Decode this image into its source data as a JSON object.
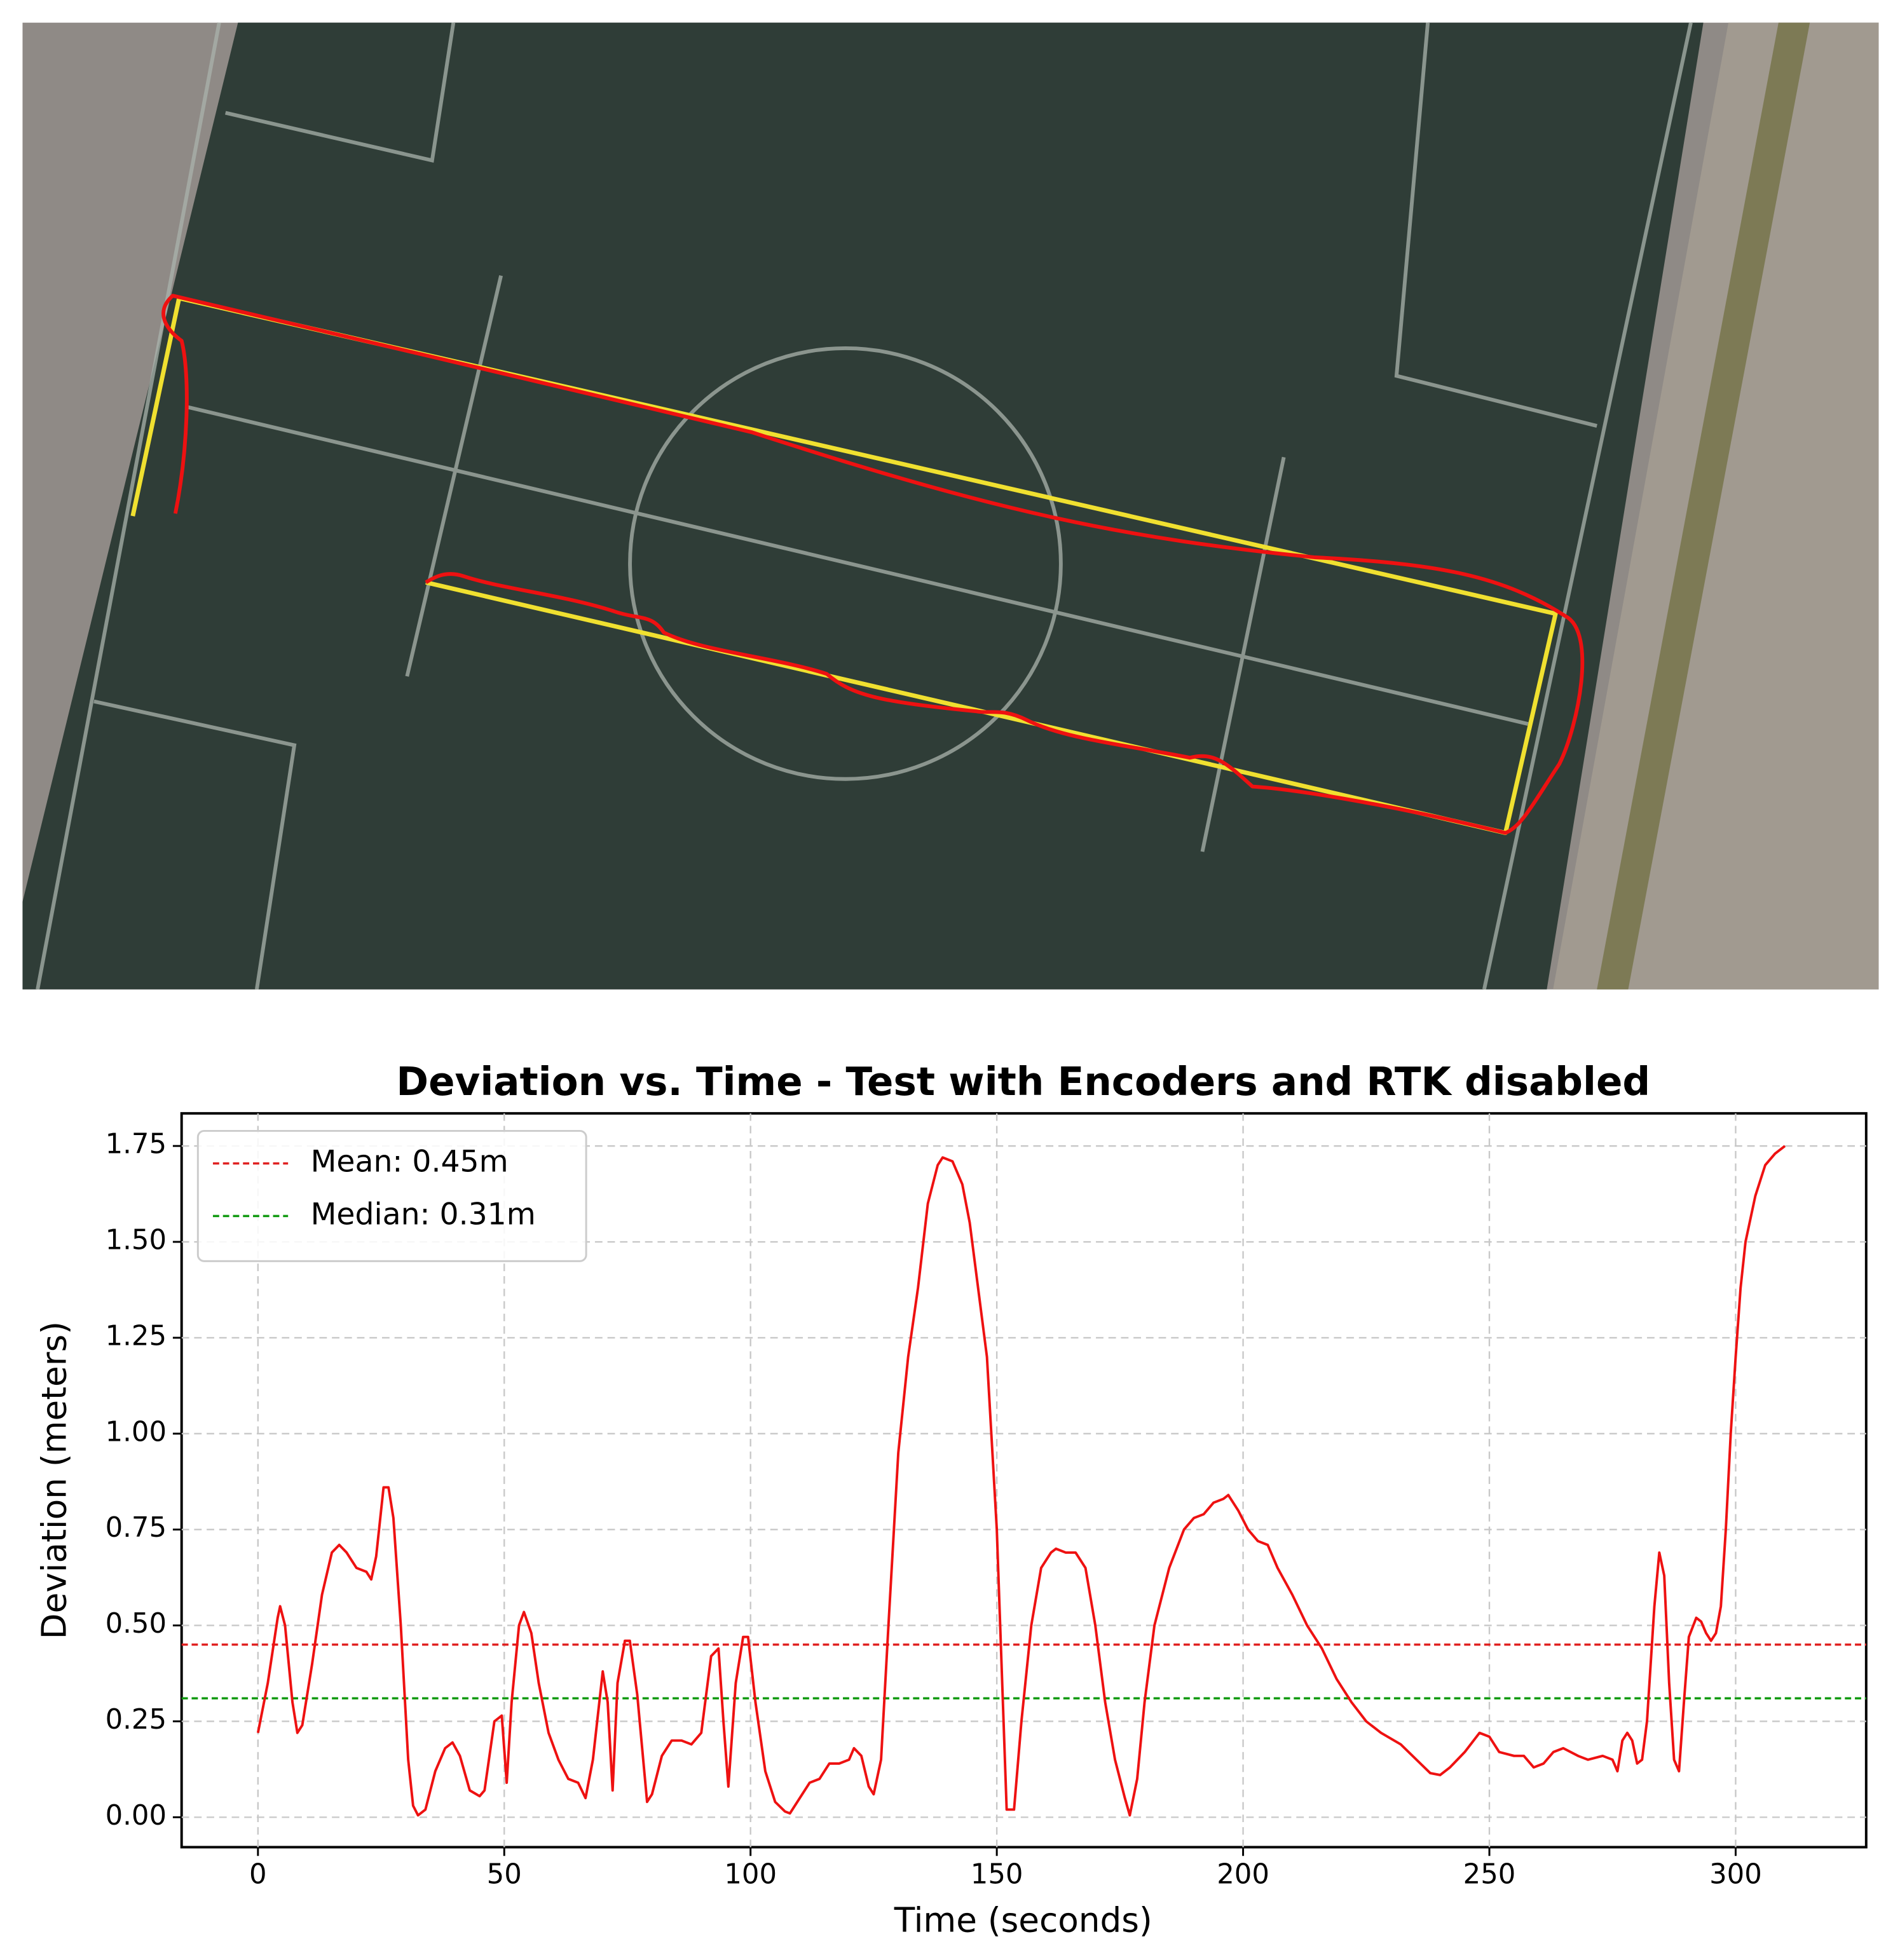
{
  "chart_data": {
    "type": "line",
    "title": "Deviation vs. Time - Test with Encoders and RTK disabled",
    "xlabel": "Time (seconds)",
    "ylabel": "Deviation (meters)",
    "xlim": [
      -15.5,
      326.5
    ],
    "ylim": [
      -0.078,
      1.835
    ],
    "xticks": [
      0,
      50,
      100,
      150,
      200,
      250,
      300
    ],
    "yticks": [
      {
        "value": 0,
        "label": "0.00"
      },
      {
        "value": 0.25,
        "label": "0.25"
      },
      {
        "value": 0.5,
        "label": "0.50"
      },
      {
        "value": 0.75,
        "label": "0.75"
      },
      {
        "value": 1,
        "label": "1.00"
      },
      {
        "value": 1.25,
        "label": "1.25"
      },
      {
        "value": 1.5,
        "label": "1.50"
      },
      {
        "value": 1.75,
        "label": "1.75"
      }
    ],
    "grid": true,
    "legend": "upper left",
    "hlines": [
      {
        "name": "Mean: 0.45m",
        "value": 0.45,
        "color": "#e02020"
      },
      {
        "name": "Median: 0.31m",
        "value": 0.31,
        "color": "#109a10"
      }
    ],
    "series": [
      {
        "color": "#ee1111",
        "x": [
          0,
          2,
          4,
          4.5,
          5.5,
          7,
          8,
          9,
          11,
          13,
          15,
          16.5,
          18,
          20,
          22,
          23,
          24,
          25.5,
          26.5,
          27.5,
          29,
          30.5,
          31.5,
          32.5,
          34,
          36,
          38,
          39.5,
          41,
          43,
          45,
          46,
          48,
          49.5,
          50.5,
          51.5,
          53,
          54,
          55.5,
          57,
          59,
          61,
          63,
          65,
          66.5,
          68,
          70,
          71,
          72,
          73,
          74.5,
          75.5,
          77,
          79,
          80,
          82,
          84,
          86,
          88,
          90,
          92,
          93.5,
          94.5,
          95.5,
          97,
          98.5,
          99.5,
          101,
          103,
          105,
          107,
          108,
          110,
          112,
          114,
          116,
          118,
          120,
          121,
          122.5,
          124,
          125,
          126.5,
          128,
          130,
          132,
          134,
          136,
          138,
          139,
          141,
          143,
          144.5,
          146,
          148,
          150,
          152,
          153.5,
          155,
          157,
          159,
          161,
          162,
          164,
          166,
          168,
          170,
          172,
          174,
          176,
          177,
          178.5,
          180,
          182,
          185,
          188,
          190,
          192,
          194,
          196,
          197,
          199,
          201,
          203,
          205,
          207,
          210,
          213,
          216,
          219,
          222,
          225,
          228,
          232,
          236,
          238,
          240,
          242,
          245,
          248,
          250,
          252,
          255,
          257,
          259,
          261,
          263,
          265,
          268,
          270,
          273,
          275,
          276,
          277,
          278,
          279,
          280,
          281,
          282,
          283.5,
          284.5,
          285.5,
          286.5,
          287.5,
          288.5,
          289.5,
          290.5,
          292,
          293,
          294,
          295,
          296,
          297,
          298,
          299,
          300,
          301,
          302,
          304,
          306,
          308,
          310
        ],
        "values": [
          0.22,
          0.35,
          0.52,
          0.55,
          0.5,
          0.3,
          0.22,
          0.24,
          0.4,
          0.58,
          0.69,
          0.71,
          0.69,
          0.65,
          0.64,
          0.62,
          0.68,
          0.86,
          0.86,
          0.78,
          0.5,
          0.15,
          0.03,
          0.005,
          0.02,
          0.12,
          0.18,
          0.195,
          0.16,
          0.07,
          0.055,
          0.07,
          0.25,
          0.265,
          0.09,
          0.3,
          0.5,
          0.535,
          0.48,
          0.35,
          0.22,
          0.15,
          0.1,
          0.09,
          0.05,
          0.15,
          0.38,
          0.3,
          0.07,
          0.35,
          0.46,
          0.46,
          0.32,
          0.04,
          0.06,
          0.16,
          0.2,
          0.2,
          0.19,
          0.22,
          0.42,
          0.44,
          0.25,
          0.08,
          0.35,
          0.47,
          0.47,
          0.3,
          0.12,
          0.04,
          0.015,
          0.01,
          0.05,
          0.09,
          0.1,
          0.14,
          0.14,
          0.15,
          0.18,
          0.16,
          0.08,
          0.06,
          0.15,
          0.5,
          0.95,
          1.2,
          1.38,
          1.6,
          1.7,
          1.72,
          1.71,
          1.65,
          1.55,
          1.4,
          1.2,
          0.75,
          0.02,
          0.02,
          0.25,
          0.5,
          0.65,
          0.69,
          0.7,
          0.69,
          0.69,
          0.65,
          0.5,
          0.3,
          0.15,
          0.05,
          0.005,
          0.1,
          0.3,
          0.5,
          0.65,
          0.75,
          0.78,
          0.79,
          0.82,
          0.83,
          0.84,
          0.8,
          0.75,
          0.72,
          0.71,
          0.65,
          0.58,
          0.5,
          0.44,
          0.36,
          0.3,
          0.25,
          0.22,
          0.19,
          0.14,
          0.115,
          0.11,
          0.13,
          0.17,
          0.22,
          0.21,
          0.17,
          0.16,
          0.16,
          0.13,
          0.14,
          0.17,
          0.18,
          0.16,
          0.15,
          0.16,
          0.15,
          0.12,
          0.2,
          0.22,
          0.2,
          0.14,
          0.15,
          0.25,
          0.55,
          0.69,
          0.63,
          0.35,
          0.15,
          0.12,
          0.3,
          0.47,
          0.52,
          0.51,
          0.48,
          0.46,
          0.48,
          0.55,
          0.75,
          1.0,
          1.2,
          1.38,
          1.5,
          1.62,
          1.7,
          1.73,
          1.75
        ]
      }
    ]
  }
}
